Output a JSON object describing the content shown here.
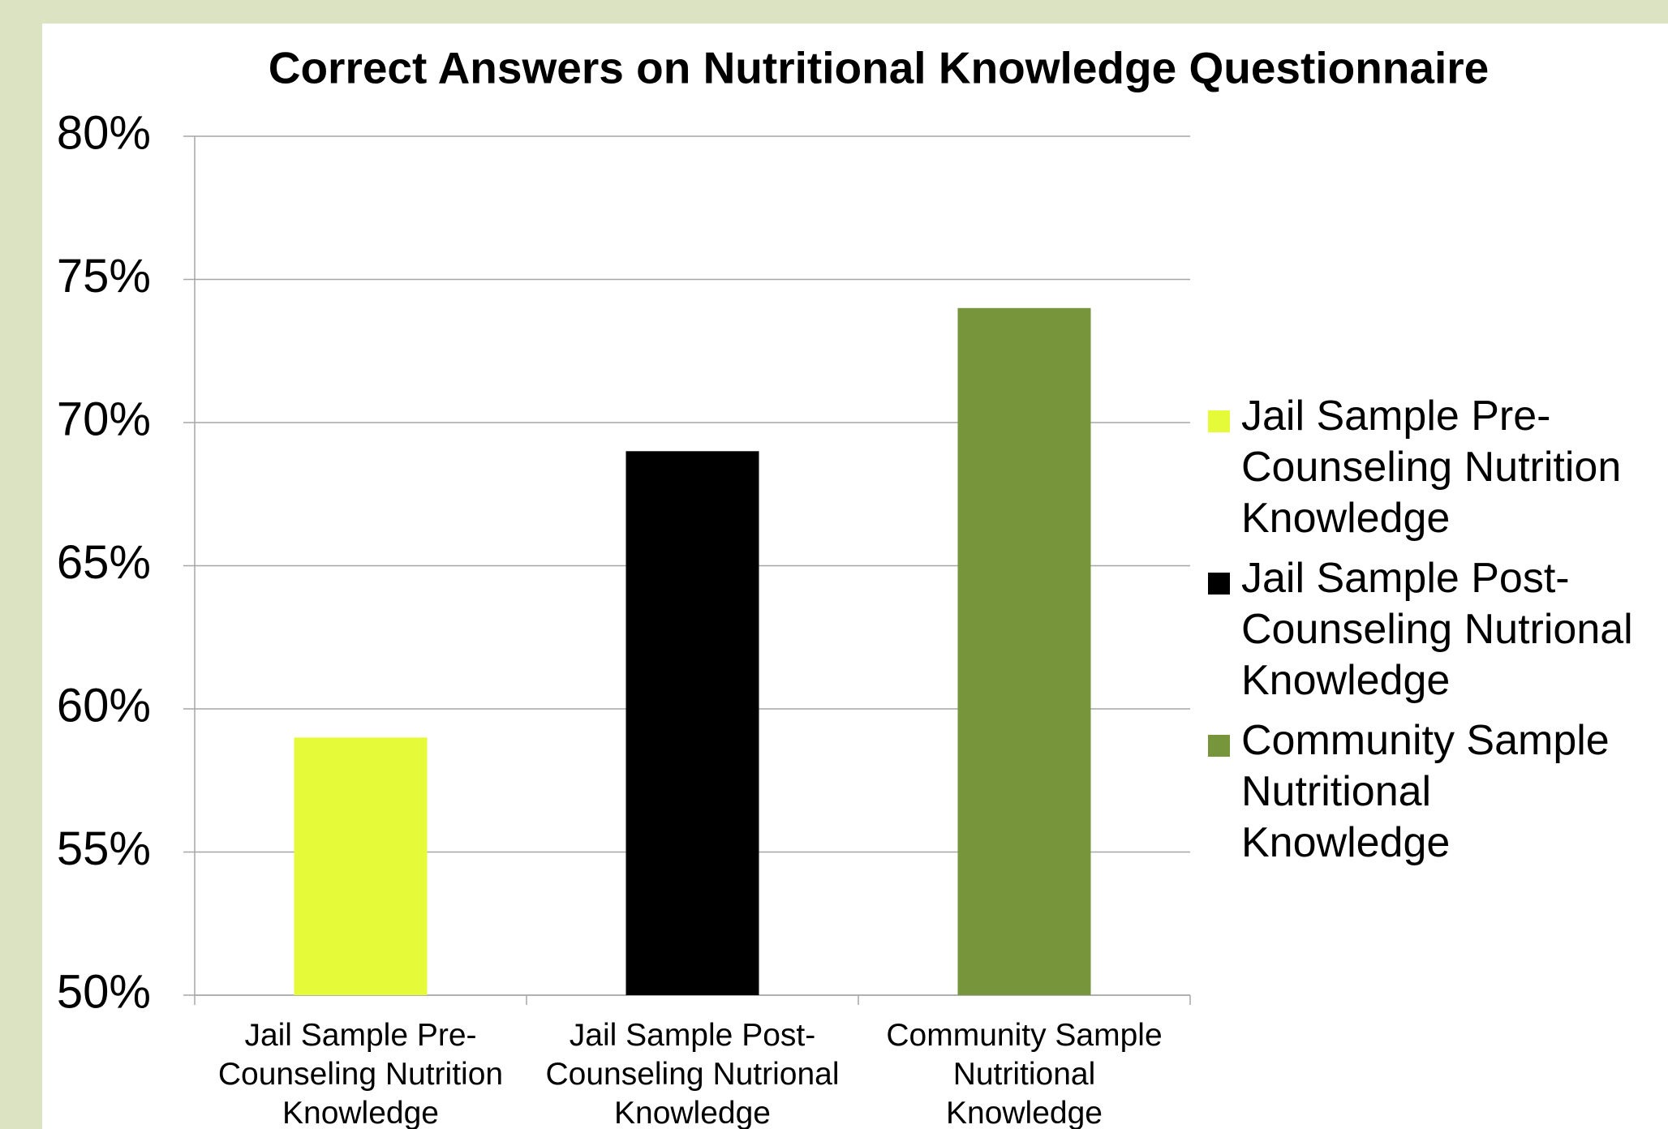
{
  "chart_data": {
    "type": "bar",
    "title": "Correct Answers on Nutritional Knowledge Questionnaire",
    "categories": [
      "Jail Sample Pre-Counseling Nutrition Knowledge",
      "Jail Sample Post-Counseling Nutrional Knowledge",
      "Community Sample Nutritional Knowledge"
    ],
    "values": [
      59,
      69,
      74
    ],
    "colors": [
      "#e5fb3a",
      "#000000",
      "#77963c"
    ],
    "ylim": [
      50,
      80
    ],
    "yticks": [
      {
        "value": 50,
        "label": "50%"
      },
      {
        "value": 55,
        "label": "55%"
      },
      {
        "value": 60,
        "label": "60%"
      },
      {
        "value": 65,
        "label": "65%"
      },
      {
        "value": 70,
        "label": "70%"
      },
      {
        "value": 75,
        "label": "75%"
      },
      {
        "value": 80,
        "label": "80%"
      }
    ],
    "grid": true,
    "legend": "right"
  }
}
